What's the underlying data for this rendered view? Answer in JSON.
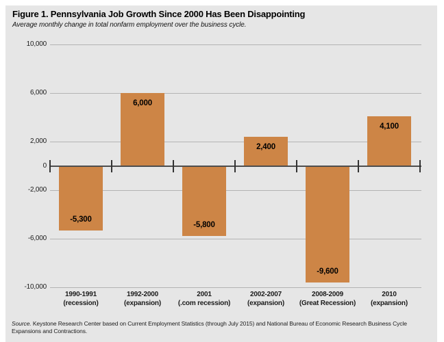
{
  "header": {
    "title": "Figure 1. Pennsylvania Job Growth Since 2000 Has Been Disappointing",
    "subtitle": "Average monthly change in total nonfarm employment over the business cycle."
  },
  "chart_data": {
    "type": "bar",
    "title": "Figure 1. Pennsylvania Job Growth Since 2000 Has Been Disappointing",
    "subtitle": "Average monthly change in total nonfarm employment over the business cycle.",
    "categories": [
      {
        "period": "1990-1991",
        "phase": "(recession)"
      },
      {
        "period": "1992-2000",
        "phase": "(expansion)"
      },
      {
        "period": "2001",
        "phase": "(.com recession)"
      },
      {
        "period": "2002-2007",
        "phase": "(expansion)"
      },
      {
        "period": "2008-2009",
        "phase": "(Great Recession)"
      },
      {
        "period": "2010",
        "phase": "(expansion)"
      }
    ],
    "values": [
      -5300,
      6000,
      -5800,
      2400,
      -9600,
      4100
    ],
    "value_labels": [
      "-5,300",
      "6,000",
      "-5,800",
      "2,400",
      "-9,600",
      "4,100"
    ],
    "xlabel": "",
    "ylabel": "",
    "ylim": [
      -10000,
      10000
    ],
    "yticks": [
      10000,
      6000,
      2000,
      0,
      -2000,
      -6000,
      -10000
    ],
    "ytick_labels": [
      "10,000",
      "6,000",
      "2,000",
      "0",
      "-2,000",
      "-6,000",
      "-10,000"
    ],
    "grid": true,
    "legend": "none",
    "bar_color": "#cd8546",
    "background_color": "#e6e6e6",
    "gridline_color": "#b3b3b3",
    "zero_line_color": "#4d4d4d"
  },
  "footer": {
    "source_prefix": "Source.",
    "source_text": " Keystone Research Center based on Current Employment Statistics (through July 2015) and National Bureau of Economic Research Business Cycle Expansions and Contractions."
  }
}
